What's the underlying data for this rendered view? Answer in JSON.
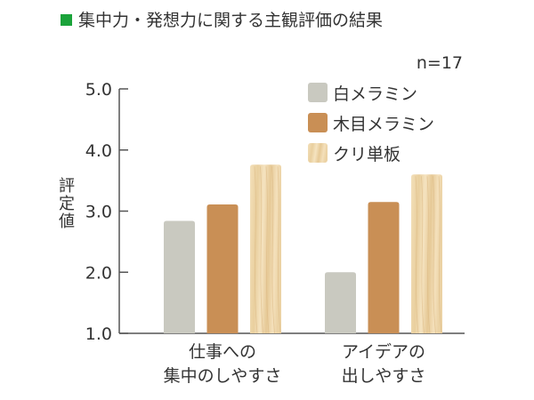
{
  "chart_data": {
    "type": "bar",
    "title": "集中力・発想力に関する主観評価の結果",
    "title_marker_color": "#1aa33a",
    "annotation": "n=17",
    "ylabel": "評定値",
    "xlabel": "",
    "ylim": [
      1.0,
      5.0
    ],
    "yticks": [
      "1.0",
      "2.0",
      "3.0",
      "4.0",
      "5.0"
    ],
    "categories": [
      [
        "仕事への",
        "集中のしやすさ"
      ],
      [
        "アイデアの",
        "出しやすさ"
      ]
    ],
    "series": [
      {
        "name": "白メラミン",
        "values": [
          2.84,
          2.0
        ],
        "color": "#c9c9c0"
      },
      {
        "name": "木目メラミン",
        "values": [
          3.11,
          3.15
        ],
        "color": "#c98f55"
      },
      {
        "name": "クリ単板",
        "values": [
          3.76,
          3.6
        ],
        "color": "#f1dcb2"
      }
    ],
    "legend_position": "top-right",
    "grid": false
  }
}
